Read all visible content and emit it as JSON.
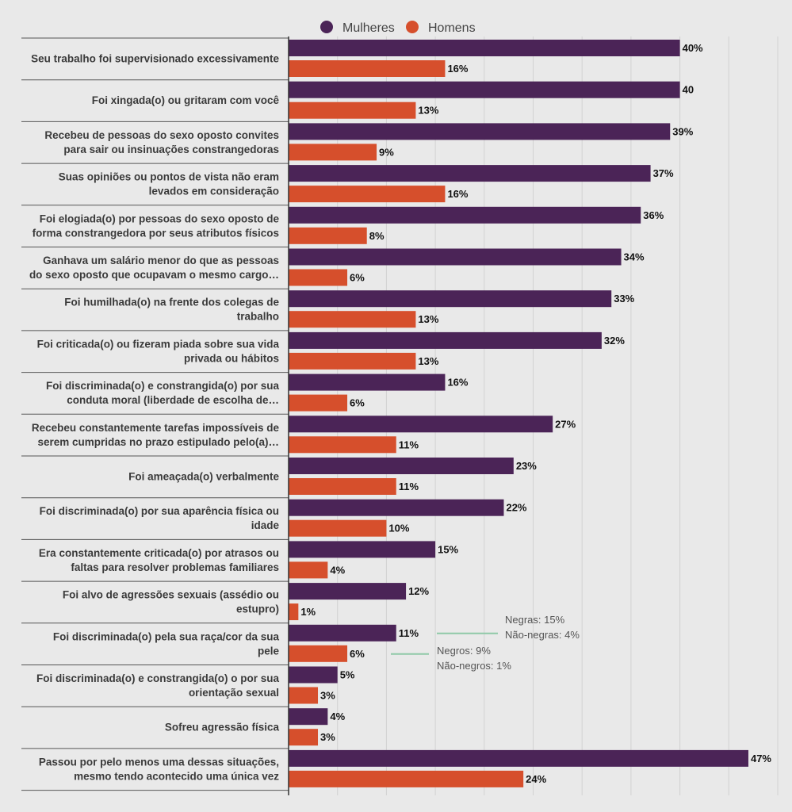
{
  "chart_data": {
    "type": "bar",
    "orientation": "horizontal",
    "legend_position": "top-center",
    "grid": true,
    "xlim": [
      0,
      50
    ],
    "colors": {
      "Mulheres": "#4b2457",
      "Homens": "#d64f2c"
    },
    "categories": [
      "Seu trabalho foi supervisionado excessivamente",
      "Foi xingada(o) ou gritaram com você",
      "Recebeu de pessoas do sexo oposto convites para sair ou insinuações constrangedoras",
      "Suas opiniões ou pontos de vista não eram levados em consideração",
      "Foi elogiada(o) por pessoas do sexo oposto de forma constrangedora por seus atributos físicos",
      "Ganhava um salário menor do que as pessoas do sexo oposto que ocupavam o mesmo cargo…",
      "Foi humilhada(o) na frente dos colegas de trabalho",
      "Foi criticada(o) ou fizeram piada sobre sua vida privada ou hábitos",
      "Foi discriminada(o) e constrangida(o) por sua conduta moral (liberdade de escolha de…",
      "Recebeu constantemente tarefas impossíveis de serem cumpridas no prazo estipulado pelo(a)…",
      "Foi ameaçada(o) verbalmente",
      "Foi discriminada(o) por sua aparência física ou idade",
      "Era constantemente criticada(o) por atrasos ou faltas para resolver problemas familiares",
      "Foi alvo de agressões sexuais (assédio ou estupro)",
      "Foi discriminada(o) pela sua raça/cor da sua pele",
      "Foi discriminada(o) e constrangida(o) o por sua orientação sexual",
      "Sofreu agressão física",
      "Passou por pelo menos uma dessas situações, mesmo tendo acontecido uma única vez"
    ],
    "category_lines": [
      [
        "Seu trabalho foi supervisionado excessivamente"
      ],
      [
        "Foi xingada(o) ou gritaram com você"
      ],
      [
        "Recebeu de pessoas do sexo oposto convites",
        "para sair ou insinuações constrangedoras"
      ],
      [
        "Suas opiniões ou pontos de vista não eram",
        "levados em consideração"
      ],
      [
        "Foi elogiada(o) por pessoas do sexo oposto de",
        "forma constrangedora por seus atributos físicos"
      ],
      [
        "Ganhava um salário menor do que as pessoas",
        "do sexo oposto que ocupavam o mesmo cargo…"
      ],
      [
        "Foi humilhada(o) na frente dos colegas de",
        "trabalho"
      ],
      [
        "Foi criticada(o) ou fizeram piada sobre sua vida",
        "privada ou hábitos"
      ],
      [
        "Foi discriminada(o) e constrangida(o) por sua",
        "conduta moral (liberdade de escolha de…"
      ],
      [
        "Recebeu constantemente tarefas impossíveis de",
        "serem cumpridas no prazo estipulado pelo(a)…"
      ],
      [
        "Foi ameaçada(o) verbalmente"
      ],
      [
        "Foi discriminada(o) por sua aparência física ou",
        "idade"
      ],
      [
        "Era constantemente criticada(o) por atrasos ou",
        "faltas para resolver problemas familiares"
      ],
      [
        "Foi alvo de agressões sexuais (assédio ou",
        "estupro)"
      ],
      [
        "Foi discriminada(o) pela sua raça/cor da sua",
        "pele"
      ],
      [
        "Foi discriminada(o) e constrangida(o) o por sua",
        "orientação sexual"
      ],
      [
        "Sofreu agressão física"
      ],
      [
        "Passou por pelo menos uma dessas situações,",
        "mesmo tendo acontecido uma única vez"
      ]
    ],
    "series": [
      {
        "name": "Mulheres",
        "values": [
          40,
          40,
          39,
          37,
          36,
          34,
          33,
          32,
          16,
          27,
          23,
          22,
          15,
          12,
          11,
          5,
          4,
          47
        ],
        "labels": [
          "40%",
          "40",
          "39%",
          "37%",
          "36%",
          "34%",
          "33%",
          "32%",
          "16%",
          "27%",
          "23%",
          "22%",
          "15%",
          "12%",
          "11%",
          "5%",
          "4%",
          "47%"
        ]
      },
      {
        "name": "Homens",
        "values": [
          16,
          13,
          9,
          16,
          8,
          6,
          13,
          13,
          6,
          11,
          11,
          10,
          4,
          1,
          6,
          3,
          3,
          24
        ],
        "labels": [
          "16%",
          "13%",
          "9%",
          "16%",
          "8%",
          "6%",
          "13%",
          "13%",
          "6%",
          "11%",
          "11%",
          "10%",
          "4%",
          "1%",
          "6%",
          "3%",
          "3%",
          "24%"
        ]
      }
    ],
    "annotations": [
      {
        "category_index": 14,
        "series": "Mulheres",
        "lines": [
          "Negras: 15%",
          "Não-negras: 4%"
        ]
      },
      {
        "category_index": 14,
        "series": "Homens",
        "lines": [
          "Negros: 9%",
          "Não-negros: 1%"
        ]
      }
    ]
  }
}
